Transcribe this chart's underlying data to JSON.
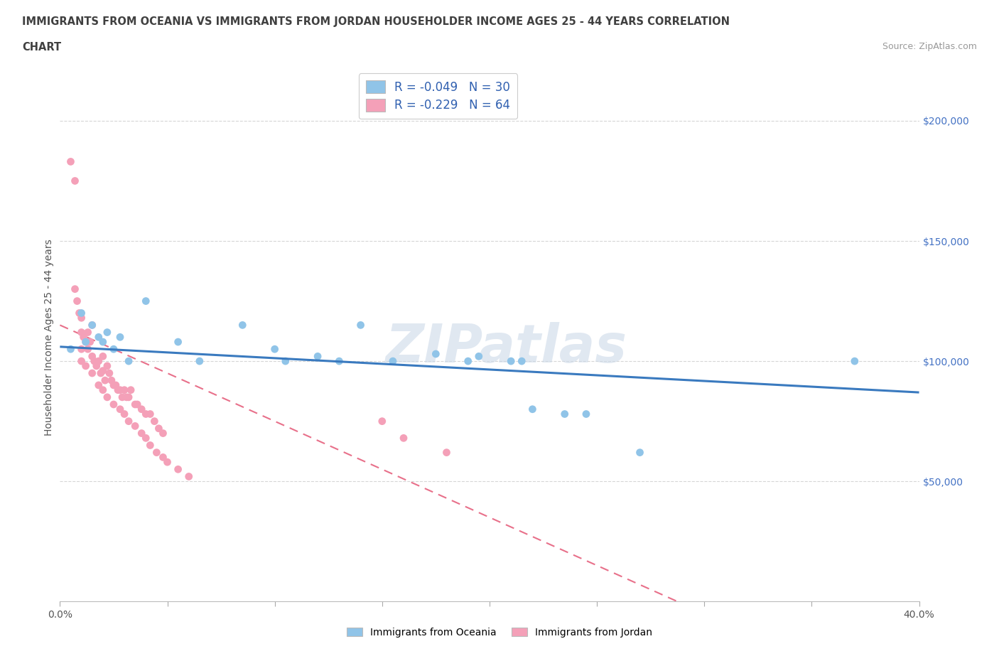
{
  "title_line1": "IMMIGRANTS FROM OCEANIA VS IMMIGRANTS FROM JORDAN HOUSEHOLDER INCOME AGES 25 - 44 YEARS CORRELATION",
  "title_line2": "CHART",
  "source_text": "Source: ZipAtlas.com",
  "ylabel": "Householder Income Ages 25 - 44 years",
  "xlim": [
    0.0,
    0.4
  ],
  "ylim": [
    0,
    220000
  ],
  "xticks": [
    0.0,
    0.05,
    0.1,
    0.15,
    0.2,
    0.25,
    0.3,
    0.35,
    0.4
  ],
  "ytick_vals": [
    50000,
    100000,
    150000,
    200000
  ],
  "color_oceania": "#90c4e8",
  "color_jordan": "#f4a0b8",
  "trendline_oceania_color": "#3a7abf",
  "trendline_jordan_color": "#e8708a",
  "watermark": "ZIPatlas",
  "oceania_x": [
    0.005,
    0.01,
    0.012,
    0.015,
    0.018,
    0.02,
    0.022,
    0.025,
    0.028,
    0.032,
    0.04,
    0.055,
    0.065,
    0.085,
    0.1,
    0.105,
    0.12,
    0.13,
    0.14,
    0.155,
    0.175,
    0.19,
    0.195,
    0.21,
    0.215,
    0.22,
    0.235,
    0.245,
    0.27,
    0.37
  ],
  "oceania_y": [
    105000,
    120000,
    108000,
    115000,
    110000,
    108000,
    112000,
    105000,
    110000,
    100000,
    125000,
    108000,
    100000,
    115000,
    105000,
    100000,
    102000,
    100000,
    115000,
    100000,
    103000,
    100000,
    102000,
    100000,
    100000,
    80000,
    78000,
    78000,
    62000,
    100000
  ],
  "jordan_x": [
    0.005,
    0.007,
    0.008,
    0.009,
    0.01,
    0.01,
    0.011,
    0.012,
    0.013,
    0.013,
    0.014,
    0.015,
    0.015,
    0.016,
    0.017,
    0.018,
    0.019,
    0.02,
    0.02,
    0.021,
    0.022,
    0.023,
    0.024,
    0.025,
    0.026,
    0.027,
    0.028,
    0.029,
    0.03,
    0.031,
    0.032,
    0.033,
    0.035,
    0.036,
    0.038,
    0.04,
    0.042,
    0.044,
    0.046,
    0.048,
    0.01,
    0.01,
    0.012,
    0.015,
    0.018,
    0.02,
    0.022,
    0.025,
    0.028,
    0.03,
    0.032,
    0.035,
    0.038,
    0.04,
    0.042,
    0.045,
    0.048,
    0.05,
    0.055,
    0.06,
    0.007,
    0.15,
    0.16,
    0.18
  ],
  "jordan_y": [
    183000,
    130000,
    125000,
    120000,
    118000,
    112000,
    110000,
    108000,
    112000,
    105000,
    108000,
    115000,
    102000,
    100000,
    98000,
    100000,
    95000,
    102000,
    96000,
    92000,
    98000,
    95000,
    92000,
    90000,
    90000,
    88000,
    88000,
    85000,
    88000,
    85000,
    85000,
    88000,
    82000,
    82000,
    80000,
    78000,
    78000,
    75000,
    72000,
    70000,
    105000,
    100000,
    98000,
    95000,
    90000,
    88000,
    85000,
    82000,
    80000,
    78000,
    75000,
    73000,
    70000,
    68000,
    65000,
    62000,
    60000,
    58000,
    55000,
    52000,
    175000,
    75000,
    68000,
    62000
  ]
}
